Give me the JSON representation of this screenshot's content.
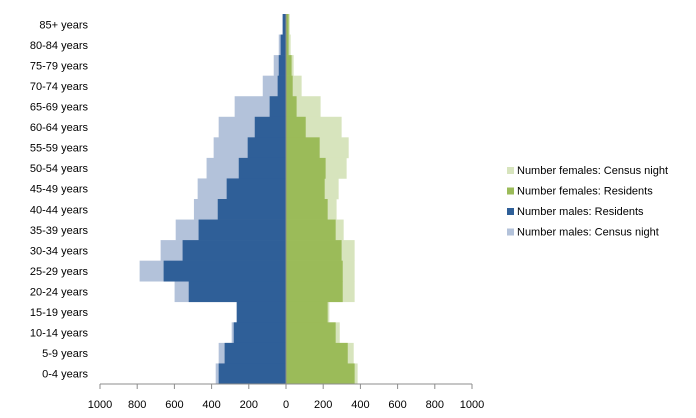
{
  "chart_data": {
    "type": "bar",
    "orientation": "horizontal-pyramid",
    "categories": [
      "85+ years",
      "80-84 years",
      "75-79 years",
      "70-74 years",
      "65-69 years",
      "60-64 years",
      "55-59 years",
      "50-54 years",
      "45-49 years",
      "40-44 years",
      "35-39 years",
      "30-34 years",
      "25-29 years",
      "20-24 years",
      "15-19 years",
      "10-14 years",
      "5-9 years",
      "0-4 years"
    ],
    "series": [
      {
        "name": "Number females: Census night",
        "side": "right",
        "color": "#d7e4bd",
        "values": [
          20,
          25,
          41,
          84,
          186,
          299,
          337,
          326,
          283,
          272,
          310,
          369,
          369,
          369,
          233,
          289,
          364,
          385
        ]
      },
      {
        "name": "Number females: Residents",
        "side": "right",
        "color": "#9bbb59",
        "values": [
          14,
          14,
          30,
          36,
          57,
          106,
          181,
          213,
          208,
          224,
          267,
          299,
          305,
          305,
          224,
          267,
          332,
          369
        ]
      },
      {
        "name": "Number males: Residents",
        "side": "left",
        "color": "#2f5f98",
        "values": [
          18,
          29,
          39,
          45,
          88,
          168,
          206,
          254,
          319,
          367,
          470,
          556,
          658,
          523,
          265,
          281,
          330,
          362
        ]
      },
      {
        "name": "Number males: Census night",
        "side": "left",
        "color": "#b3c2da",
        "values": [
          18,
          39,
          66,
          125,
          276,
          362,
          389,
          427,
          475,
          495,
          593,
          674,
          787,
          599,
          265,
          292,
          362,
          378
        ]
      }
    ],
    "xlim": [
      -1000,
      1000
    ],
    "xticks": [
      -1000,
      -800,
      -600,
      -400,
      -200,
      0,
      200,
      400,
      600,
      800,
      1000
    ],
    "xtick_labels": [
      "1000",
      "800",
      "600",
      "400",
      "200",
      "0",
      "200",
      "400",
      "600",
      "800",
      "1000"
    ],
    "legend_position": "right",
    "grid": false,
    "title": "",
    "xlabel": "",
    "ylabel": ""
  }
}
